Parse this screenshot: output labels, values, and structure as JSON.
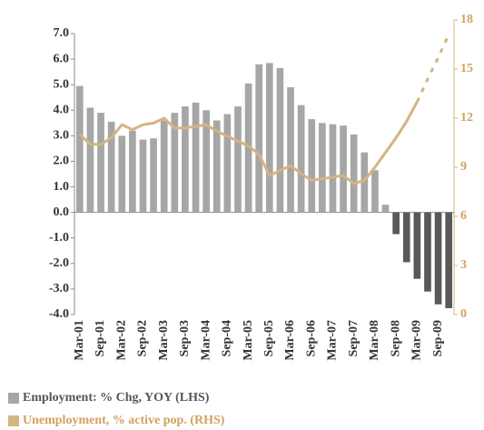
{
  "chart_data": {
    "type": "bar_line",
    "categories": [
      "Mar-01",
      null,
      "Sep-01",
      null,
      "Mar-02",
      null,
      "Sep-02",
      null,
      "Mar-03",
      null,
      "Sep-03",
      null,
      "Mar-04",
      null,
      "Sep-04",
      null,
      "Mar-05",
      null,
      "Sep-05",
      null,
      "Mar-06",
      null,
      "Sep-06",
      null,
      "Mar-07",
      null,
      "Sep-07",
      null,
      "Mar-08",
      null,
      "Sep-08",
      null,
      "Mar-09",
      null,
      "Sep-09",
      null
    ],
    "series": [
      {
        "name": "Employment: % Chg, YOY (LHS)",
        "color": "#a6a6a6",
        "negative_color": "#595959",
        "type": "bar",
        "values": [
          4.95,
          4.1,
          3.9,
          3.55,
          3.0,
          3.2,
          2.85,
          2.9,
          3.6,
          3.9,
          4.15,
          4.3,
          4.0,
          3.6,
          3.85,
          4.15,
          5.05,
          5.8,
          5.85,
          5.65,
          4.9,
          4.2,
          3.65,
          3.5,
          3.45,
          3.4,
          3.05,
          2.35,
          1.65,
          0.3,
          -0.85,
          -1.95,
          -2.6,
          -3.1,
          -3.6,
          -3.75
        ]
      },
      {
        "name": "Unemployment, % active pop. (RHS)",
        "color": "#d4b483",
        "type": "line",
        "axis": "y2",
        "values": [
          11.0,
          10.4,
          10.4,
          10.8,
          11.6,
          11.3,
          11.6,
          11.7,
          12.0,
          11.4,
          11.4,
          11.5,
          11.6,
          11.2,
          10.9,
          10.6,
          10.3,
          9.8,
          8.5,
          8.8,
          9.1,
          8.6,
          8.2,
          8.3,
          8.4,
          8.5,
          8.0,
          8.2,
          9.0,
          9.9,
          10.8,
          11.8,
          13.0,
          null,
          null,
          null
        ],
        "forecast_values": [
          null,
          null,
          null,
          null,
          null,
          null,
          null,
          null,
          null,
          null,
          null,
          null,
          null,
          null,
          null,
          null,
          null,
          null,
          null,
          null,
          null,
          null,
          null,
          null,
          null,
          null,
          null,
          null,
          null,
          null,
          null,
          null,
          13.0,
          14.4,
          15.7,
          17.1
        ]
      }
    ],
    "ylim": [
      -4,
      7
    ],
    "yticks": [
      {
        "value": -4,
        "label": "-4.0"
      },
      {
        "value": -3,
        "label": "-3.0"
      },
      {
        "value": -2,
        "label": "-2.0"
      },
      {
        "value": -1,
        "label": "-1.0"
      },
      {
        "value": 0,
        "label": "0.0"
      },
      {
        "value": 1,
        "label": "1.0"
      },
      {
        "value": 2,
        "label": "2.0"
      },
      {
        "value": 3,
        "label": "3.0"
      },
      {
        "value": 4,
        "label": "4.0"
      },
      {
        "value": 5,
        "label": "5.0"
      },
      {
        "value": 6,
        "label": "6.0"
      },
      {
        "value": 7,
        "label": "7.0"
      }
    ],
    "y2lim": [
      0,
      18
    ],
    "y2ticks": [
      0,
      3,
      6,
      9,
      12,
      15,
      18
    ]
  }
}
